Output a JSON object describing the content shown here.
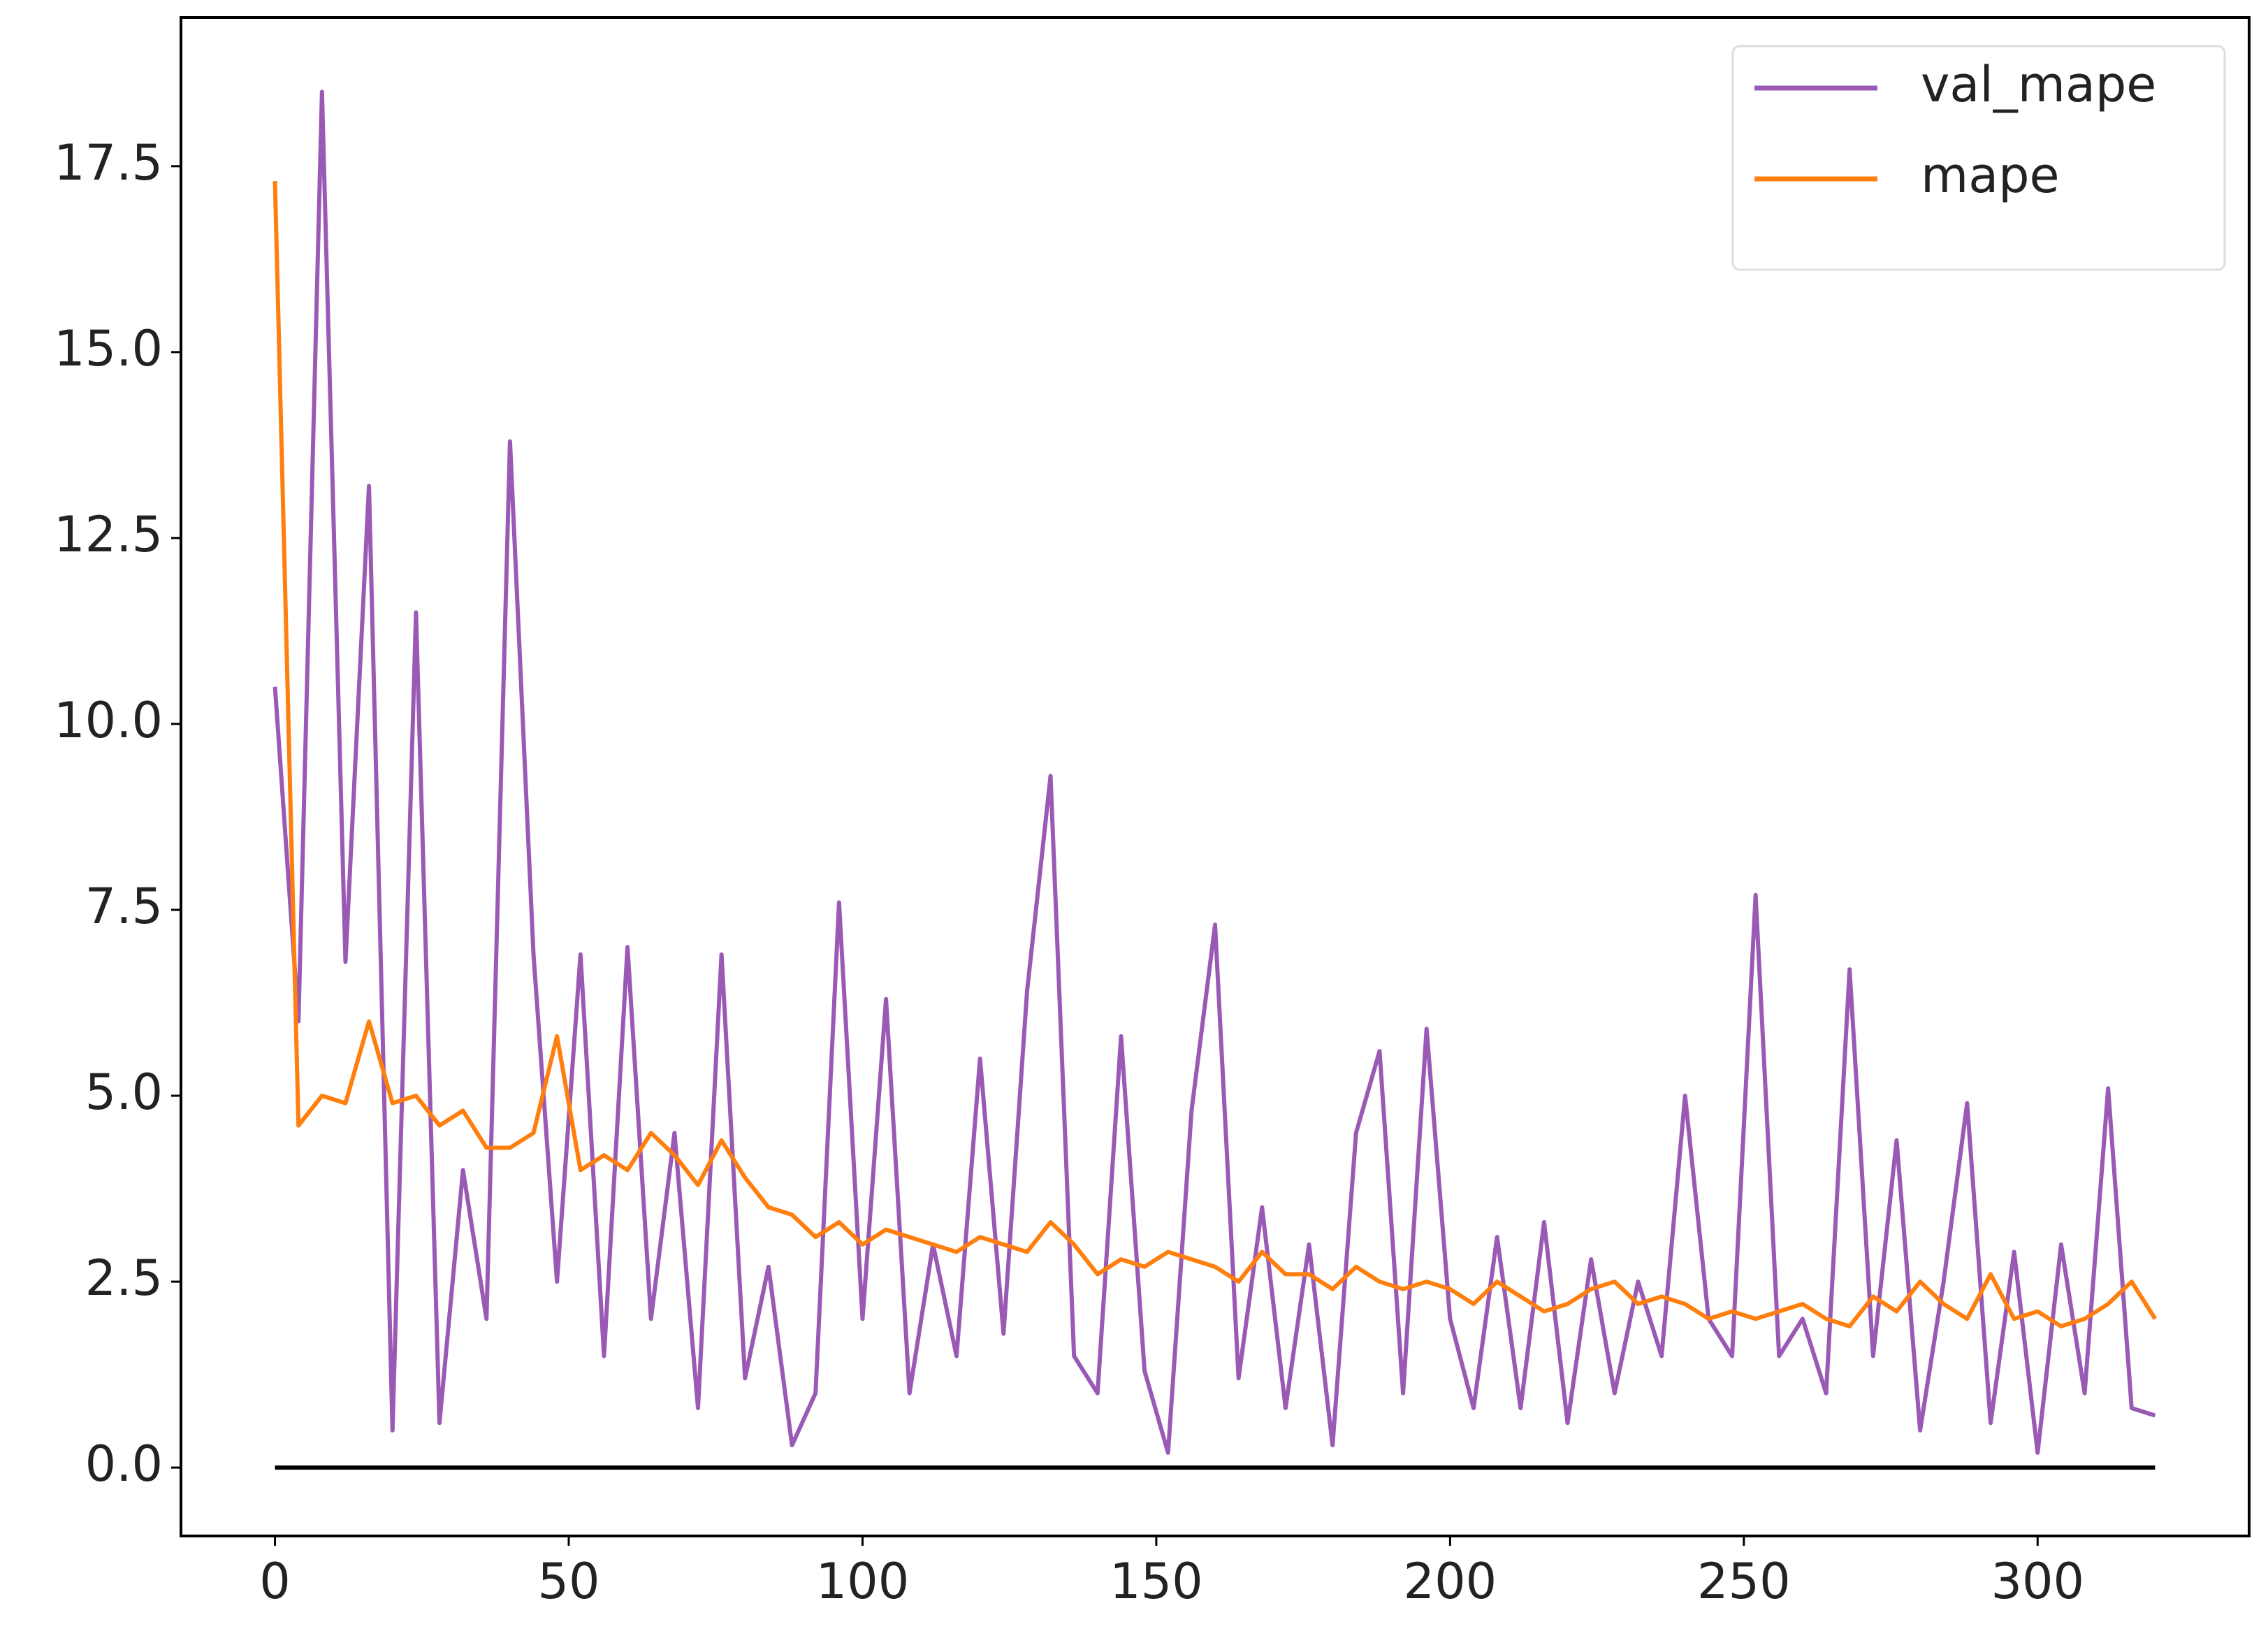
{
  "chart_data": {
    "type": "line",
    "x": [
      0,
      4,
      8,
      12,
      16,
      20,
      24,
      28,
      32,
      36,
      40,
      44,
      48,
      52,
      56,
      60,
      64,
      68,
      72,
      76,
      80,
      84,
      88,
      92,
      96,
      100,
      104,
      108,
      112,
      116,
      120,
      124,
      128,
      132,
      136,
      140,
      144,
      148,
      152,
      156,
      160,
      164,
      168,
      172,
      176,
      180,
      184,
      188,
      192,
      196,
      200,
      204,
      208,
      212,
      216,
      220,
      224,
      228,
      232,
      236,
      240,
      244,
      248,
      252,
      256,
      260,
      264,
      268,
      272,
      276,
      280,
      284,
      288,
      292,
      296,
      300,
      304,
      308,
      312,
      316,
      320
    ],
    "series": [
      {
        "name": "val_mape",
        "color": "#9b59b6",
        "values": [
          10.5,
          6.0,
          18.5,
          6.8,
          13.2,
          0.5,
          11.5,
          0.6,
          4.0,
          2.0,
          13.8,
          6.9,
          2.5,
          6.9,
          1.5,
          7.0,
          2.0,
          4.5,
          0.8,
          6.9,
          1.2,
          2.7,
          0.3,
          1.0,
          7.6,
          2.0,
          6.3,
          1.0,
          3.0,
          1.5,
          5.5,
          1.8,
          6.4,
          9.3,
          1.5,
          1.0,
          5.8,
          1.3,
          0.2,
          4.8,
          7.3,
          1.2,
          3.5,
          0.8,
          3.0,
          0.3,
          4.5,
          5.6,
          1.0,
          5.9,
          2.0,
          0.8,
          3.1,
          0.8,
          3.3,
          0.6,
          2.8,
          1.0,
          2.5,
          1.5,
          5.0,
          2.0,
          1.5,
          7.7,
          1.5,
          2.0,
          1.0,
          6.7,
          1.5,
          4.4,
          0.5,
          2.5,
          4.9,
          0.6,
          2.9,
          0.2,
          3.0,
          1.0,
          5.1,
          0.8,
          0.7
        ]
      },
      {
        "name": "mape",
        "color": "#ff7f0e",
        "values": [
          17.3,
          4.6,
          5.0,
          4.9,
          6.0,
          4.9,
          5.0,
          4.6,
          4.8,
          4.3,
          4.3,
          4.5,
          5.8,
          4.0,
          4.2,
          4.0,
          4.5,
          4.2,
          3.8,
          4.4,
          3.9,
          3.5,
          3.4,
          3.1,
          3.3,
          3.0,
          3.2,
          3.1,
          3.0,
          2.9,
          3.1,
          3.0,
          2.9,
          3.3,
          3.0,
          2.6,
          2.8,
          2.7,
          2.9,
          2.8,
          2.7,
          2.5,
          2.9,
          2.6,
          2.6,
          2.4,
          2.7,
          2.5,
          2.4,
          2.5,
          2.4,
          2.2,
          2.5,
          2.3,
          2.1,
          2.2,
          2.4,
          2.5,
          2.2,
          2.3,
          2.2,
          2.0,
          2.1,
          2.0,
          2.1,
          2.2,
          2.0,
          1.9,
          2.3,
          2.1,
          2.5,
          2.2,
          2.0,
          2.6,
          2.0,
          2.1,
          1.9,
          2.0,
          2.2,
          2.5,
          2.0
        ]
      },
      {
        "color": "#000000",
        "values": [
          0,
          0,
          0,
          0,
          0,
          0,
          0,
          0,
          0,
          0,
          0,
          0,
          0,
          0,
          0,
          0,
          0,
          0,
          0,
          0,
          0,
          0,
          0,
          0,
          0,
          0,
          0,
          0,
          0,
          0,
          0,
          0,
          0,
          0,
          0,
          0,
          0,
          0,
          0,
          0,
          0,
          0,
          0,
          0,
          0,
          0,
          0,
          0,
          0,
          0,
          0,
          0,
          0,
          0,
          0,
          0,
          0,
          0,
          0,
          0,
          0,
          0,
          0,
          0,
          0,
          0,
          0,
          0,
          0,
          0,
          0,
          0,
          0,
          0,
          0,
          0,
          0,
          0,
          0,
          0,
          0
        ]
      }
    ],
    "xlim": [
      -16,
      336
    ],
    "ylim": [
      -0.92,
      19.5
    ],
    "xticks": [
      0,
      50,
      100,
      150,
      200,
      250,
      300
    ],
    "yticks": [
      {
        "value": 0,
        "label": "0.0"
      },
      2.5,
      {
        "value": 5,
        "label": "5.0"
      },
      7.5,
      {
        "value": 10,
        "label": "10.0"
      },
      12.5,
      {
        "value": 15,
        "label": "15.0"
      },
      17.5
    ],
    "legend": "upper right",
    "grid": false
  }
}
